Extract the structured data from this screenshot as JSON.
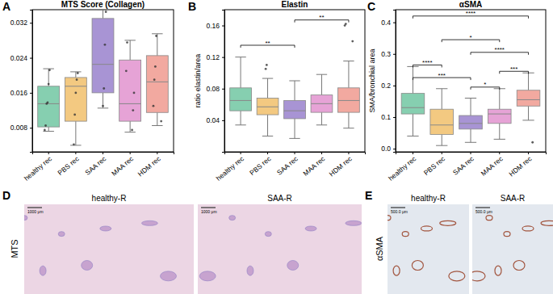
{
  "chart_data": [
    {
      "type": "box",
      "panel": "A",
      "title": "MTS Score (Collagen)",
      "categories": [
        "healthy rec",
        "PBS rec",
        "SAA rec",
        "MAA rec",
        "HDM rec"
      ],
      "colors": [
        "#86cfb0",
        "#f3c981",
        "#a894d4",
        "#e6a3d6",
        "#f2a9a0"
      ],
      "ylim": [
        0.0025,
        0.035
      ],
      "yticks": [
        0.008,
        0.016,
        0.024,
        0.032
      ],
      "whislo": [
        0.0072,
        0.004,
        0.0125,
        0.007,
        0.0085
      ],
      "q1": [
        0.0082,
        0.0095,
        0.016,
        0.0095,
        0.0115
      ],
      "median": [
        0.0135,
        0.0175,
        0.0225,
        0.0135,
        0.0185
      ],
      "q3": [
        0.0175,
        0.0195,
        0.033,
        0.0235,
        0.0245
      ],
      "whishi": [
        0.0215,
        0.0208,
        0.035,
        0.028,
        0.0295
      ],
      "points": [
        [
          0.0075,
          0.0085,
          0.0135,
          0.0138,
          0.018,
          0.0212
        ],
        [
          0.0042,
          0.011,
          0.016,
          0.019,
          0.0205
        ],
        [
          0.013,
          0.017,
          0.027,
          0.0345
        ],
        [
          0.0075,
          0.012,
          0.016,
          0.021,
          0.0275
        ],
        [
          0.0095,
          0.013,
          0.019,
          0.022,
          0.029
        ]
      ],
      "annotations": []
    },
    {
      "type": "box",
      "panel": "B",
      "title": "Elastin",
      "y_label": "ratio elastin/area",
      "categories": [
        "healthy rec",
        "PBS rec",
        "SAA rec",
        "MAA rec",
        "HDM rec"
      ],
      "colors": [
        "#86cfb0",
        "#f3c981",
        "#a894d4",
        "#e6a3d6",
        "#f2a9a0"
      ],
      "ylim": [
        0,
        0.18
      ],
      "yticks": [
        0.04,
        0.08,
        0.12,
        0.16
      ],
      "whislo": [
        0.034,
        0.02,
        0.017,
        0.034,
        0.03
      ],
      "q1": [
        0.052,
        0.047,
        0.042,
        0.05,
        0.05
      ],
      "median": [
        0.065,
        0.057,
        0.052,
        0.061,
        0.065
      ],
      "q3": [
        0.081,
        0.068,
        0.065,
        0.072,
        0.081
      ],
      "whishi": [
        0.12,
        0.093,
        0.09,
        0.098,
        0.115
      ],
      "outliers": [
        [],
        [
          0.105,
          0.11
        ],
        [],
        [],
        [
          0.14,
          0.16,
          0.162
        ]
      ],
      "annotations": [
        {
          "from": "healthy rec",
          "to": "SAA rec",
          "y": 0.135,
          "text": "**"
        },
        {
          "from": "SAA rec",
          "to": "HDM rec",
          "y": 0.167,
          "text": "**"
        }
      ]
    },
    {
      "type": "box",
      "panel": "C",
      "title": "αSMA",
      "y_label": "SMA/bronchial area",
      "categories": [
        "healthy rec",
        "PBS rec",
        "SAA rec",
        "MAA rec",
        "HDM rec"
      ],
      "colors": [
        "#86cfb0",
        "#f3c981",
        "#a894d4",
        "#e6a3d6",
        "#f2a9a0"
      ],
      "ylim": [
        -0.01,
        0.44
      ],
      "yticks": [
        {
          "value": 0,
          "label": "0.0"
        },
        0.1,
        0.2,
        0.3,
        0.4
      ],
      "whislo": [
        0.04,
        0.01,
        0.02,
        0.03,
        0.09
      ],
      "q1": [
        0.11,
        0.045,
        0.062,
        0.08,
        0.135
      ],
      "median": [
        0.13,
        0.075,
        0.08,
        0.11,
        0.155
      ],
      "q3": [
        0.175,
        0.125,
        0.105,
        0.125,
        0.185
      ],
      "whishi": [
        0.26,
        0.19,
        0.16,
        0.19,
        0.24
      ],
      "outliers": [
        [],
        [],
        [],
        [],
        [
          0.02
        ]
      ],
      "annotations": [
        {
          "from": "healthy rec",
          "to": "HDM rec",
          "y": 0.42,
          "text": "****"
        },
        {
          "from": "PBS rec",
          "to": "MAA rec",
          "y": 0.345,
          "text": "*"
        },
        {
          "from": "SAA rec",
          "to": "HDM rec",
          "y": 0.305,
          "text": "****"
        },
        {
          "from": "healthy rec",
          "to": "PBS rec",
          "y": 0.265,
          "text": "****"
        },
        {
          "from": "healthy rec",
          "to": "SAA rec",
          "y": 0.225,
          "text": "***"
        },
        {
          "from": "MAA rec",
          "to": "HDM rec",
          "y": 0.245,
          "text": "***"
        },
        {
          "from": "SAA rec",
          "to": "MAA rec",
          "y": 0.195,
          "text": "*"
        }
      ]
    }
  ],
  "image_panels": [
    {
      "label": "D",
      "stain": "MTS",
      "images": [
        {
          "title": "healthy-R",
          "scale_bar": "1000 μm"
        },
        {
          "title": "SAA-R",
          "scale_bar": "1000 μm"
        }
      ]
    },
    {
      "label": "E",
      "stain": "αSMA",
      "images": [
        {
          "title": "healthy-R",
          "scale_bar": "500.0 μm"
        },
        {
          "title": "SAA-R",
          "scale_bar": "500.0 μm"
        }
      ]
    }
  ]
}
